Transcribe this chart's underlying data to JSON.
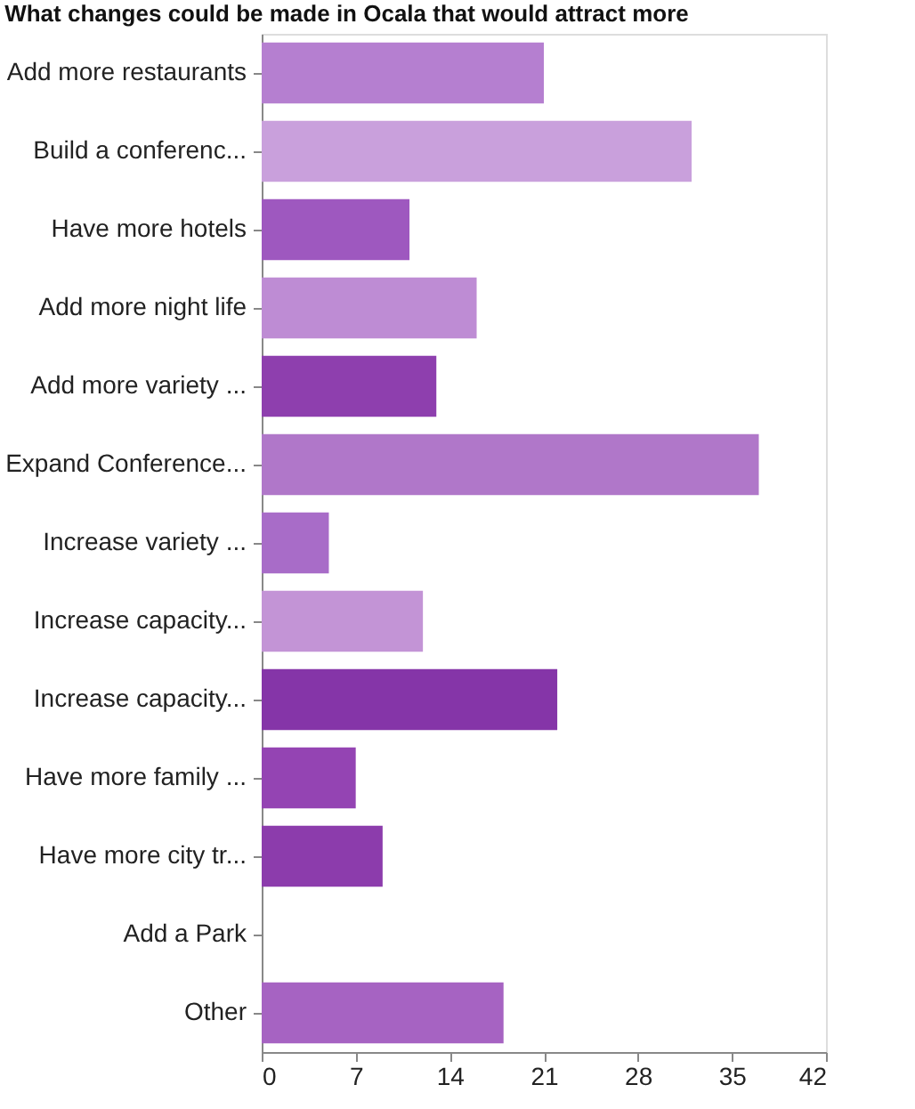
{
  "chart_data": {
    "type": "bar",
    "orientation": "horizontal",
    "title": "What changes could be made in Ocala that would attract more",
    "categories": [
      "Add more restaurants",
      "Build a conferenc...",
      "Have more hotels",
      "Add more night life",
      "Add more variety ...",
      "Expand Conference...",
      "Increase variety ...",
      "Increase capacity...",
      "Increase capacity...",
      "Have more family ...",
      "Have more city tr...",
      "Add a Park",
      "Other"
    ],
    "values": [
      21,
      32,
      11,
      16,
      13,
      37,
      5,
      12,
      22,
      7,
      9,
      0,
      18
    ],
    "colors": [
      "#b57fd0",
      "#c9a0dc",
      "#9e58bf",
      "#be8cd4",
      "#8e3fae",
      "#b077c9",
      "#a86cc8",
      "#c394d6",
      "#8535a8",
      "#9444b3",
      "#8c3cac",
      "#a663c2",
      "#a663c2"
    ],
    "xlim": [
      0,
      42
    ],
    "xticks": [
      0,
      7,
      14,
      21,
      28,
      35,
      42
    ],
    "grid": false
  }
}
